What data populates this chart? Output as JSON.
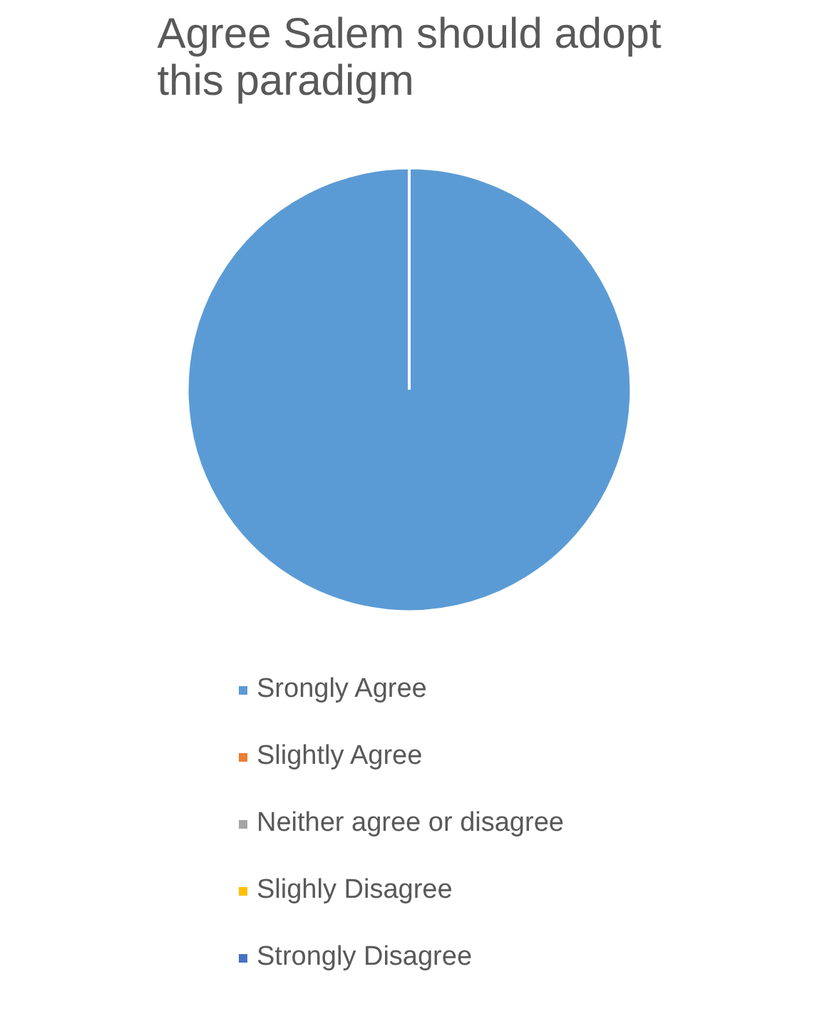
{
  "chart_data": {
    "type": "pie",
    "title": "Agree Salem should adopt this paradigm",
    "categories": [
      "Srongly Agree",
      "Slightly Agree",
      "Neither agree or disagree",
      "Slighly Disagree",
      "Strongly Disagree"
    ],
    "values": [
      100,
      0,
      0,
      0,
      0
    ],
    "colors": [
      "#5b9bd5",
      "#ed7d31",
      "#a5a5a5",
      "#ffc000",
      "#4472c4"
    ],
    "legend": "bottom"
  }
}
